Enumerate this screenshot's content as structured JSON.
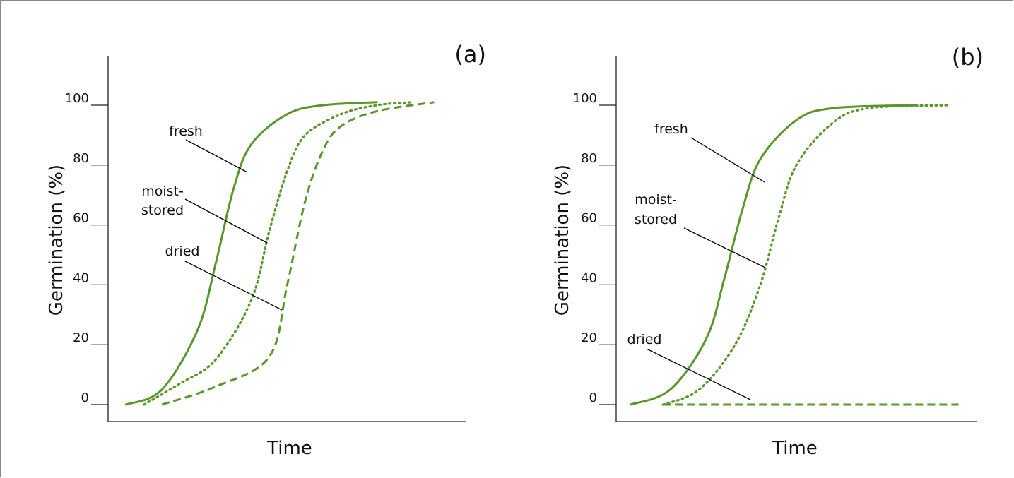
{
  "colors": {
    "series": "#5a962a",
    "axis": "#222222",
    "text": "#111111",
    "border": "#888888"
  },
  "chart_data": [
    {
      "type": "line",
      "panel_label": "(a)",
      "xlabel": "Time",
      "ylabel": "Germination (%)",
      "yticks": [
        "0",
        "20",
        "40",
        "60",
        "80",
        "100"
      ],
      "ylim": [
        -5,
        120
      ],
      "xlim": [
        0,
        10
      ],
      "series": [
        {
          "name": "fresh",
          "style": "solid",
          "x": [
            0.5,
            1.5,
            2.5,
            3.0,
            3.5,
            4.0,
            5.0,
            6.0,
            7.5
          ],
          "y": [
            0,
            5,
            25,
            47,
            72,
            87,
            97,
            100,
            101
          ]
        },
        {
          "name": "moist-stored",
          "style": "dotted",
          "x": [
            1.0,
            2.0,
            3.0,
            4.0,
            4.5,
            5.0,
            5.5,
            6.5,
            7.5,
            8.5
          ],
          "y": [
            0,
            7,
            15,
            35,
            58,
            78,
            90,
            97,
            100,
            101
          ]
        },
        {
          "name": "dried",
          "style": "dashed",
          "x": [
            1.5,
            3.0,
            4.5,
            5.0,
            5.5,
            6.0,
            6.5,
            7.5,
            9.1
          ],
          "y": [
            0,
            6,
            16,
            40,
            68,
            85,
            93,
            98,
            101
          ]
        }
      ],
      "labels": [
        {
          "text": "fresh"
        },
        {
          "text": "moist-",
          "text2": "stored"
        },
        {
          "text": "dried"
        }
      ]
    },
    {
      "type": "line",
      "panel_label": "(b)",
      "xlabel": "Time",
      "ylabel": "Germination (%)",
      "yticks": [
        "0",
        "20",
        "40",
        "60",
        "80",
        "100"
      ],
      "ylim": [
        -5,
        120
      ],
      "xlim": [
        0,
        10
      ],
      "series": [
        {
          "name": "fresh",
          "style": "solid",
          "x": [
            0.4,
            1.5,
            2.5,
            3.0,
            3.5,
            4.0,
            5.0,
            6.0,
            8.3
          ],
          "y": [
            0,
            5,
            22,
            42,
            65,
            82,
            95,
            99,
            100
          ]
        },
        {
          "name": "moist-stored",
          "style": "dotted",
          "x": [
            1.3,
            2.3,
            3.3,
            4.0,
            4.5,
            5.0,
            6.0,
            7.0,
            9.2
          ],
          "y": [
            0,
            5,
            20,
            40,
            62,
            80,
            94,
            99,
            100
          ]
        },
        {
          "name": "dried",
          "style": "dashed",
          "x": [
            1.3,
            9.5
          ],
          "y": [
            0,
            0
          ]
        }
      ],
      "labels": [
        {
          "text": "fresh"
        },
        {
          "text": "moist-",
          "text2": "stored"
        },
        {
          "text": "dried"
        }
      ]
    }
  ]
}
